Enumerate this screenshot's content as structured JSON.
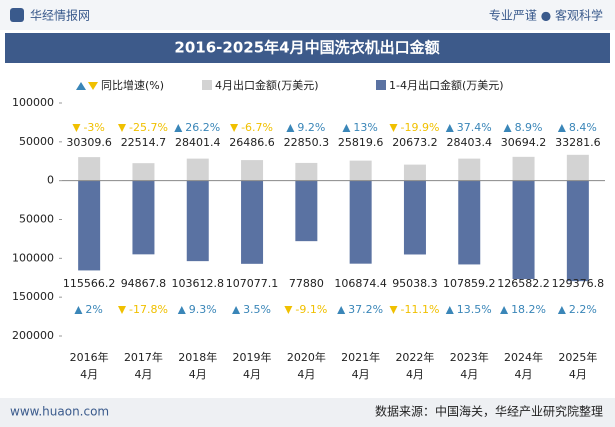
{
  "header": {
    "brand": "华经情报网",
    "slogan": "专业严谨 ● 客观科学"
  },
  "chart_data": {
    "type": "bar",
    "title": "2016-2025年4月中国洗衣机出口金额",
    "growth_legend": "同比增速(%)",
    "up_color": "#3a86b8",
    "down_color": "#f0c000",
    "categories": [
      [
        "2016年",
        "4月"
      ],
      [
        "2017年",
        "4月"
      ],
      [
        "2018年",
        "4月"
      ],
      [
        "2019年",
        "4月"
      ],
      [
        "2020年",
        "4月"
      ],
      [
        "2021年",
        "4月"
      ],
      [
        "2022年",
        "4月"
      ],
      [
        "2023年",
        "4月"
      ],
      [
        "2024年",
        "4月"
      ],
      [
        "2025年",
        "4月"
      ]
    ],
    "series": [
      {
        "name": "4月出口金额(万美元)",
        "color": "#d3d3d3",
        "values": [
          30309.6,
          22514.7,
          28401.4,
          26486.6,
          22850.3,
          25819.6,
          20673.2,
          28403.4,
          30694.2,
          33281.6
        ],
        "growth": [
          -3,
          -25.7,
          26.2,
          -6.7,
          9.2,
          13,
          -19.9,
          37.4,
          8.9,
          8.4
        ],
        "growth_labels": [
          "-3%",
          "-25.7%",
          "26.2%",
          "-6.7%",
          "9.2%",
          "13%",
          "-19.9%",
          "37.4%",
          "8.9%",
          "8.4%"
        ]
      },
      {
        "name": "1-4月出口金额(万美元)",
        "color": "#5a72a2",
        "values": [
          -115566.2,
          -94867.8,
          -103612.8,
          -107077.1,
          -77880,
          -106874.4,
          -95038.3,
          -107859.2,
          -126582.2,
          -129376.8
        ],
        "value_labels": [
          "115566.2",
          "94867.8",
          "103612.8",
          "107077.1",
          "77880",
          "106874.4",
          "95038.3",
          "107859.2",
          "126582.2",
          "129376.8"
        ],
        "growth": [
          2,
          -17.8,
          9.3,
          3.5,
          -9.1,
          37.2,
          -11.1,
          13.5,
          18.2,
          2.2
        ],
        "growth_labels": [
          "2%",
          "-17.8%",
          "9.3%",
          "3.5%",
          "-9.1%",
          "37.2%",
          "-11.1%",
          "13.5%",
          "18.2%",
          "2.2%"
        ]
      }
    ],
    "ylim": [
      -200000,
      100000
    ],
    "yticks": [
      100000,
      50000,
      0,
      {
        "value": -50000,
        "label": "50000"
      },
      {
        "value": -100000,
        "label": "100000"
      },
      {
        "value": -150000,
        "label": "150000"
      },
      {
        "value": -200000,
        "label": "200000"
      }
    ]
  },
  "footer": {
    "site": "www.huaon.com",
    "source": "数据来源：中国海关，华经产业研究院整理"
  }
}
